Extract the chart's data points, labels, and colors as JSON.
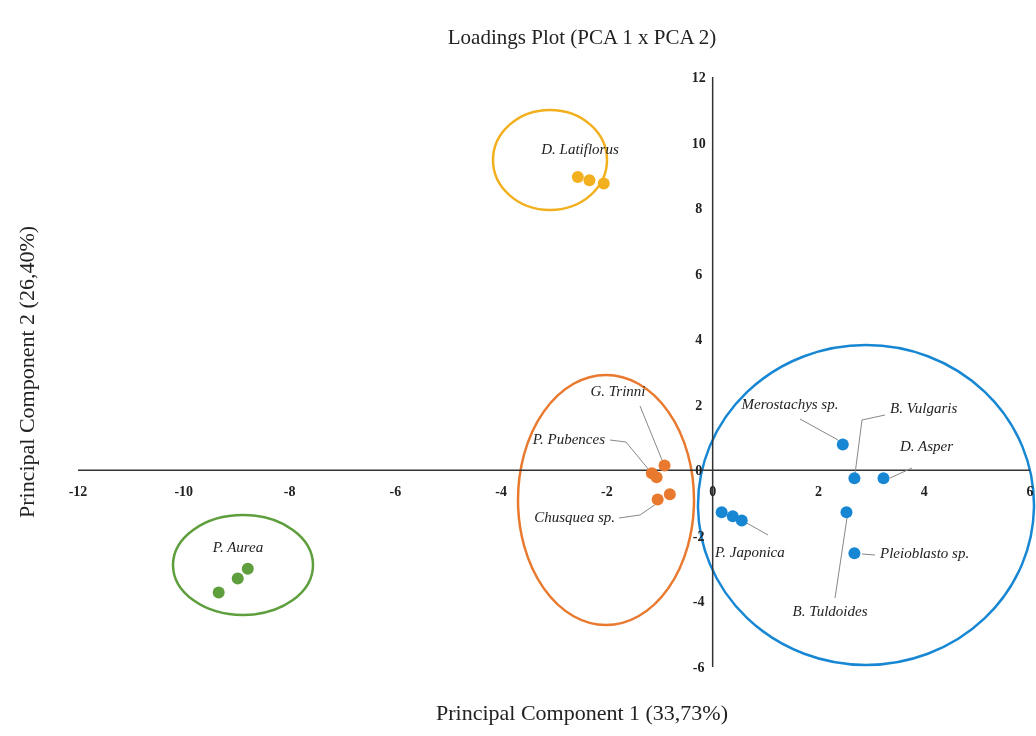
{
  "chart_data": {
    "type": "scatter",
    "title": "Loadings Plot (PCA 1 x PCA 2)",
    "xlabel": "Principal Component 1 (33,73%)",
    "ylabel": "Principal Component 2 (26,40%)",
    "xlim": [
      -12,
      6
    ],
    "ylim": [
      -6,
      12
    ],
    "xticks": [
      -12,
      -10,
      -8,
      -6,
      -4,
      -2,
      0,
      2,
      4,
      6
    ],
    "yticks": [
      -6,
      -4,
      -2,
      0,
      2,
      4,
      6,
      8,
      10,
      12
    ],
    "marker": "circle",
    "series": [
      {
        "name": "D. Latiflorus",
        "color": "#f2b01e",
        "x": [
          -2.55,
          -2.33,
          -2.06
        ],
        "values": [
          8.95,
          8.85,
          8.75
        ]
      },
      {
        "name": "P. Aurea",
        "color": "#5e9e3c",
        "x": [
          -9.34,
          -8.98,
          -8.79
        ],
        "values": [
          -3.73,
          -3.3,
          -3.0
        ]
      },
      {
        "name": "G. Trinni",
        "color": "#e8792e",
        "x": [
          -0.91
        ],
        "values": [
          0.15
        ]
      },
      {
        "name": "P. Pubences",
        "color": "#e8792e",
        "x": [
          -1.15,
          -1.06
        ],
        "values": [
          -0.09,
          -0.21
        ]
      },
      {
        "name": "Chusquea sp.",
        "color": "#e8792e",
        "x": [
          -1.04,
          -0.81
        ],
        "values": [
          -0.89,
          -0.73
        ]
      },
      {
        "name": "Merostachys sp.",
        "color": "#1787d4",
        "x": [
          2.46
        ],
        "values": [
          0.79
        ]
      },
      {
        "name": "B. Vulgaris",
        "color": "#1787d4",
        "x": [
          2.68
        ],
        "values": [
          -0.24
        ]
      },
      {
        "name": "D. Asper",
        "color": "#1787d4",
        "x": [
          3.23
        ],
        "values": [
          -0.24
        ]
      },
      {
        "name": "B. Tuldoides",
        "color": "#1787d4",
        "x": [
          2.53
        ],
        "values": [
          -1.28
        ]
      },
      {
        "name": "Pleioblasto sp.",
        "color": "#1787d4",
        "x": [
          2.68
        ],
        "values": [
          -2.53
        ]
      },
      {
        "name": "P. Japonica",
        "color": "#1787d4",
        "x": [
          0.17,
          0.38,
          0.55
        ],
        "values": [
          -1.28,
          -1.4,
          -1.53
        ]
      }
    ]
  }
}
